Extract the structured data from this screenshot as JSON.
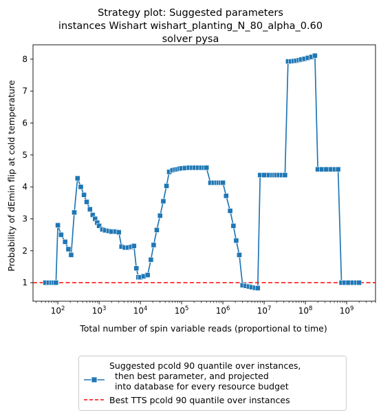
{
  "chart_data": {
    "type": "line",
    "title": "Strategy plot: Suggested parameters\ninstances Wishart wishart_planting_N_80_alpha_0.60\nsolver pysa",
    "xlabel": "Total number of spin variable reads (proportional to time)",
    "ylabel": "Probability of dEmin flip at cold temperature",
    "xscale": "log",
    "xlim": [
      25,
      5000000000
    ],
    "ylim": [
      0.42,
      8.45
    ],
    "x_tick_labels": [
      "10^2",
      "10^3",
      "10^4",
      "10^5",
      "10^6",
      "10^7",
      "10^8",
      "10^9"
    ],
    "y_tick_labels": [
      "1",
      "2",
      "3",
      "4",
      "5",
      "6",
      "7",
      "8"
    ],
    "grid": false,
    "legend_position": "below",
    "series": [
      {
        "name": "Suggested pcold 90 quantile over instances,\n  then best parameter, and projected\n  into database for every resource budget",
        "color": "#1f77b4",
        "marker": "square",
        "x": [
          50,
          60,
          70,
          80,
          90,
          100,
          120,
          150,
          180,
          210,
          250,
          300,
          360,
          430,
          500,
          600,
          700,
          800,
          900,
          1000,
          1200,
          1400,
          1700,
          2000,
          2500,
          3000,
          3500,
          4200,
          5000,
          6000,
          7000,
          8000,
          9000,
          10000,
          12000,
          15000,
          18000,
          21000,
          25000,
          30000,
          36000,
          43000,
          50000,
          60000,
          70000,
          80000,
          90000,
          100000,
          120000,
          150000,
          180000,
          210000,
          250000,
          300000,
          350000,
          400000,
          500000,
          600000,
          700000,
          800000,
          900000,
          1000000,
          1200000,
          1500000,
          1800000,
          2100000,
          2500000,
          3000000,
          3600000,
          4300000,
          5000000,
          6000000,
          7000000,
          8000000,
          10000000,
          13000000,
          16000000,
          18000000,
          20000000,
          23000000,
          27000000,
          32000000,
          38000000,
          45000000,
          52000000,
          60000000,
          70000000,
          80000000,
          95000000,
          115000000,
          140000000,
          170000000,
          200000000,
          250000000,
          320000000,
          420000000,
          520000000,
          620000000,
          750000000,
          900000000,
          1100000000,
          1400000000,
          1700000000,
          2000000000
        ],
        "y": [
          1.0,
          1.0,
          1.0,
          1.0,
          1.0,
          2.8,
          2.5,
          2.28,
          2.05,
          1.87,
          3.2,
          4.27,
          4.0,
          3.75,
          3.53,
          3.3,
          3.12,
          3.0,
          2.88,
          2.78,
          2.67,
          2.64,
          2.62,
          2.6,
          2.6,
          2.58,
          2.13,
          2.1,
          2.1,
          2.12,
          2.15,
          1.45,
          1.17,
          1.17,
          1.2,
          1.24,
          1.72,
          2.18,
          2.65,
          3.1,
          3.55,
          4.03,
          4.47,
          4.52,
          4.54,
          4.55,
          4.57,
          4.58,
          4.59,
          4.6,
          4.6,
          4.6,
          4.6,
          4.6,
          4.6,
          4.6,
          4.13,
          4.13,
          4.13,
          4.13,
          4.13,
          4.13,
          3.72,
          3.25,
          2.78,
          2.32,
          1.87,
          0.92,
          0.9,
          0.88,
          0.86,
          0.84,
          0.83,
          4.37,
          4.37,
          4.37,
          4.37,
          4.37,
          4.37,
          4.37,
          4.37,
          4.37,
          7.93,
          7.93,
          7.94,
          7.95,
          7.97,
          7.99,
          8.01,
          8.04,
          8.07,
          8.11,
          4.55,
          4.55,
          4.55,
          4.55,
          4.55,
          4.55,
          1.0,
          1.0,
          1.0,
          1.0,
          1.0,
          1.0
        ]
      },
      {
        "name": "Best TTS pcold 90 quantile over instances",
        "color": "#ff0000",
        "style": "dashed",
        "y": 1.0
      }
    ]
  }
}
